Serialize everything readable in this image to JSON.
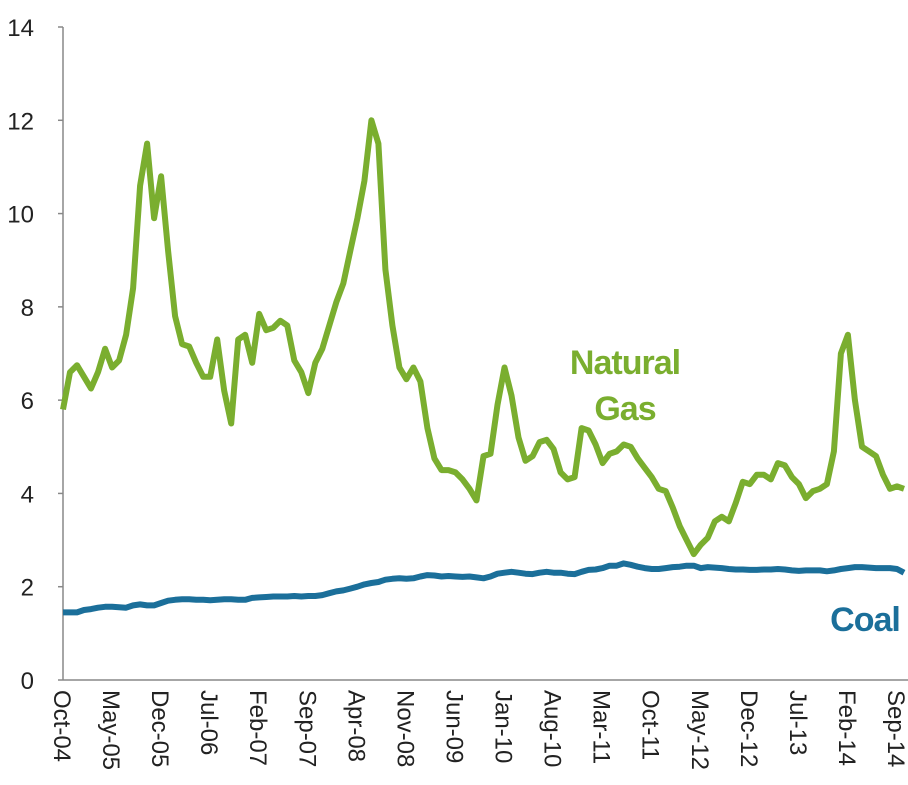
{
  "chart_data": {
    "type": "line",
    "categories": [
      "Oct-04",
      null,
      null,
      null,
      null,
      null,
      null,
      "May-05",
      null,
      null,
      null,
      null,
      null,
      null,
      "Dec-05",
      null,
      null,
      null,
      null,
      null,
      null,
      "Jul-06",
      null,
      null,
      null,
      null,
      null,
      null,
      "Feb-07",
      null,
      null,
      null,
      null,
      null,
      null,
      "Sep-07",
      null,
      null,
      null,
      null,
      null,
      null,
      "Apr-08",
      null,
      null,
      null,
      null,
      null,
      null,
      "Nov-08",
      null,
      null,
      null,
      null,
      null,
      null,
      "Jun-09",
      null,
      null,
      null,
      null,
      null,
      null,
      "Jan-10",
      null,
      null,
      null,
      null,
      null,
      null,
      "Aug-10",
      null,
      null,
      null,
      null,
      null,
      null,
      "Mar-11",
      null,
      null,
      null,
      null,
      null,
      null,
      "Oct-11",
      null,
      null,
      null,
      null,
      null,
      null,
      "May-12",
      null,
      null,
      null,
      null,
      null,
      null,
      "Dec-12",
      null,
      null,
      null,
      null,
      null,
      null,
      "Jul-13",
      null,
      null,
      null,
      null,
      null,
      null,
      "Feb-14",
      null,
      null,
      null,
      null,
      null,
      null,
      "Sep-14",
      null
    ],
    "series": [
      {
        "name": "Natural Gas",
        "color": "#7aae2f",
        "values": [
          5.8,
          6.6,
          6.75,
          6.5,
          6.25,
          6.6,
          7.1,
          6.7,
          6.85,
          7.4,
          8.4,
          10.6,
          11.5,
          9.9,
          10.8,
          9.2,
          7.8,
          7.2,
          7.15,
          6.8,
          6.5,
          6.5,
          7.3,
          6.2,
          5.5,
          7.3,
          7.4,
          6.8,
          7.85,
          7.5,
          7.55,
          7.7,
          7.6,
          6.85,
          6.6,
          6.15,
          6.8,
          7.1,
          7.6,
          8.1,
          8.5,
          9.2,
          9.9,
          10.7,
          12.0,
          11.5,
          8.8,
          7.6,
          6.7,
          6.45,
          6.7,
          6.4,
          5.4,
          4.75,
          4.5,
          4.5,
          4.45,
          4.3,
          4.1,
          3.85,
          4.8,
          4.85,
          5.9,
          6.7,
          6.1,
          5.2,
          4.7,
          4.8,
          5.1,
          5.15,
          4.95,
          4.45,
          4.3,
          4.35,
          5.4,
          5.35,
          5.05,
          4.65,
          4.85,
          4.9,
          5.05,
          5.0,
          4.75,
          4.55,
          4.35,
          4.1,
          4.05,
          3.7,
          3.3,
          3.0,
          2.7,
          2.9,
          3.05,
          3.4,
          3.5,
          3.4,
          3.8,
          4.25,
          4.2,
          4.4,
          4.4,
          4.3,
          4.65,
          4.6,
          4.35,
          4.2,
          3.9,
          4.05,
          4.1,
          4.2,
          4.9,
          7.0,
          7.4,
          6.0,
          5.0,
          4.9,
          4.8,
          4.4,
          4.1,
          4.15,
          4.1
        ]
      },
      {
        "name": "Coal",
        "color": "#1b6f9a",
        "values": [
          1.45,
          1.45,
          1.45,
          1.5,
          1.52,
          1.55,
          1.57,
          1.57,
          1.56,
          1.55,
          1.6,
          1.62,
          1.6,
          1.6,
          1.65,
          1.7,
          1.72,
          1.73,
          1.73,
          1.72,
          1.72,
          1.71,
          1.72,
          1.73,
          1.73,
          1.72,
          1.72,
          1.76,
          1.77,
          1.78,
          1.79,
          1.79,
          1.79,
          1.8,
          1.79,
          1.8,
          1.8,
          1.82,
          1.86,
          1.9,
          1.92,
          1.96,
          2.0,
          2.05,
          2.08,
          2.1,
          2.15,
          2.17,
          2.18,
          2.17,
          2.18,
          2.22,
          2.25,
          2.24,
          2.22,
          2.23,
          2.22,
          2.21,
          2.22,
          2.2,
          2.18,
          2.22,
          2.28,
          2.3,
          2.32,
          2.3,
          2.28,
          2.27,
          2.3,
          2.32,
          2.3,
          2.3,
          2.28,
          2.27,
          2.32,
          2.36,
          2.37,
          2.4,
          2.45,
          2.45,
          2.5,
          2.47,
          2.43,
          2.4,
          2.38,
          2.38,
          2.4,
          2.42,
          2.43,
          2.45,
          2.45,
          2.4,
          2.42,
          2.41,
          2.4,
          2.38,
          2.37,
          2.37,
          2.36,
          2.36,
          2.37,
          2.37,
          2.38,
          2.37,
          2.35,
          2.34,
          2.35,
          2.35,
          2.35,
          2.33,
          2.35,
          2.38,
          2.4,
          2.42,
          2.42,
          2.41,
          2.4,
          2.4,
          2.4,
          2.38,
          2.3
        ]
      }
    ],
    "ylim": [
      0,
      14
    ],
    "yticks": [
      0,
      2,
      4,
      6,
      8,
      10,
      12,
      14
    ]
  }
}
